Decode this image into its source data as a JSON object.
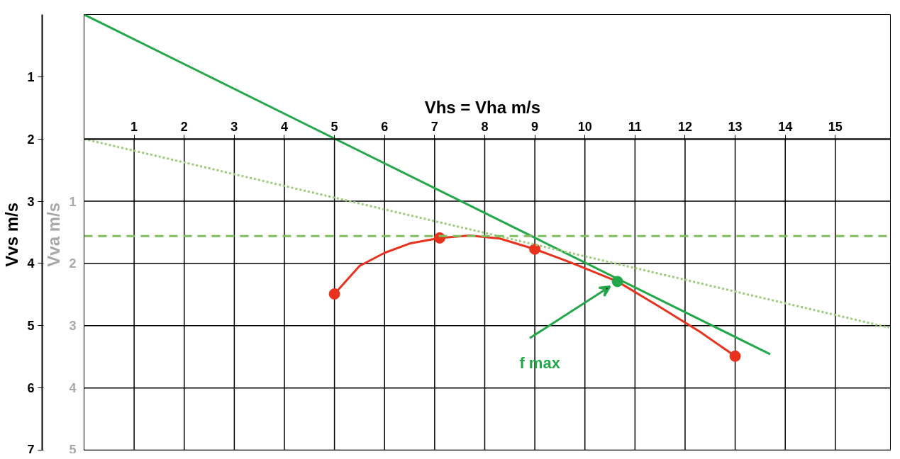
{
  "chart_data": {
    "type": "line",
    "xlabel": "Vhs = Vha   m/s",
    "ylabel": "Vvs  m/s",
    "y2label": "Vva  m/s",
    "xlim": [
      0,
      16.1
    ],
    "xticks": [
      1,
      2,
      3,
      4,
      5,
      6,
      7,
      8,
      9,
      10,
      11,
      12,
      13,
      14,
      15
    ],
    "ylim": [
      7,
      0
    ],
    "yticks": [
      1,
      2,
      3,
      4,
      5,
      6,
      7
    ],
    "y2lim": [
      5,
      -2
    ],
    "y2ticks": [
      1,
      2,
      3,
      4,
      5
    ],
    "grid": true,
    "line_style": "solid",
    "marker": "none",
    "series": [
      {
        "color": "#e8321e",
        "x": [
          5,
          5.5,
          6,
          6.5,
          7.1,
          7.7,
          8.3,
          9,
          9.7,
          10.65,
          11.5,
          12.3,
          13
        ],
        "values": [
          4.49,
          4.04,
          3.83,
          3.68,
          3.59,
          3.55,
          3.6,
          3.77,
          3.98,
          4.29,
          4.7,
          5.1,
          5.49
        ]
      },
      {
        "type": "scatter",
        "marker": "circle",
        "color": "#e8321e",
        "x": [
          5,
          7.1,
          9,
          13
        ],
        "values": [
          4.49,
          3.59,
          3.77,
          5.49
        ]
      },
      {
        "color": "#22a84a",
        "x": [
          0,
          13.7
        ],
        "values": [
          0,
          5.46
        ]
      },
      {
        "line_style": "dotted",
        "color": "#9ccc7a",
        "x": [
          0,
          16.07
        ],
        "values": [
          2,
          5.03
        ]
      },
      {
        "type": "scatter",
        "marker": "circle",
        "color": "#22a84a",
        "x": [
          10.65
        ],
        "values": [
          4.29
        ]
      }
    ],
    "ref_lines": [
      {
        "axis": "y",
        "value": 3.56,
        "color": "#7fbf5f",
        "line_style": "dashed"
      }
    ],
    "annotations": [
      "f max"
    ]
  }
}
